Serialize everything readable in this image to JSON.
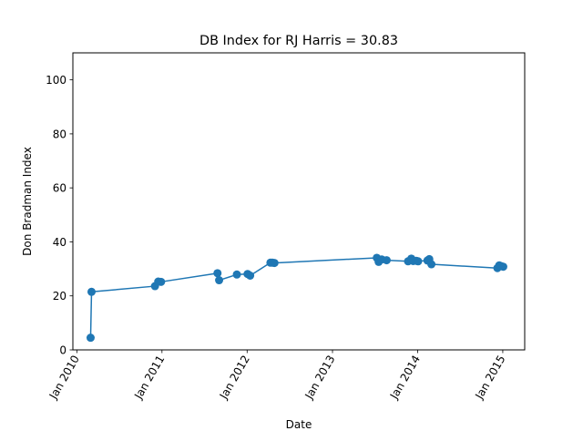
{
  "chart_data": {
    "type": "line",
    "title": "DB Index for RJ Harris = 30.83",
    "xlabel": "Date",
    "ylabel": "Don Bradman Index",
    "x_type": "date",
    "xlim": [
      "2009-12-15",
      "2015-04-05"
    ],
    "ylim": [
      0,
      110
    ],
    "x_ticks": [
      {
        "value": "2010-01-01",
        "label": "Jan 2010"
      },
      {
        "value": "2011-01-01",
        "label": "Jan 2011"
      },
      {
        "value": "2012-01-01",
        "label": "Jan 2012"
      },
      {
        "value": "2013-01-01",
        "label": "Jan 2013"
      },
      {
        "value": "2014-01-01",
        "label": "Jan 2014"
      },
      {
        "value": "2015-01-01",
        "label": "Jan 2015"
      }
    ],
    "y_ticks": [
      0,
      20,
      40,
      60,
      80,
      100
    ],
    "grid": false,
    "legend": null,
    "marker": "circle",
    "color": "#1f77b4",
    "series": [
      {
        "name": "",
        "points": [
          {
            "x": "2010-03-01",
            "y": 4.5
          },
          {
            "x": "2010-03-05",
            "y": 21.5
          },
          {
            "x": "2010-12-02",
            "y": 23.6
          },
          {
            "x": "2010-12-16",
            "y": 25.3
          },
          {
            "x": "2010-12-28",
            "y": 25.2
          },
          {
            "x": "2011-08-27",
            "y": 28.4
          },
          {
            "x": "2011-09-03",
            "y": 25.8
          },
          {
            "x": "2011-11-18",
            "y": 27.9
          },
          {
            "x": "2012-01-03",
            "y": 28.1
          },
          {
            "x": "2012-01-14",
            "y": 27.5
          },
          {
            "x": "2012-04-10",
            "y": 32.3
          },
          {
            "x": "2012-04-18",
            "y": 32.3
          },
          {
            "x": "2012-04-27",
            "y": 32.2
          },
          {
            "x": "2013-07-10",
            "y": 34.1
          },
          {
            "x": "2013-07-18",
            "y": 32.6
          },
          {
            "x": "2013-07-31",
            "y": 33.5
          },
          {
            "x": "2013-08-21",
            "y": 33.2
          },
          {
            "x": "2013-11-21",
            "y": 32.8
          },
          {
            "x": "2013-12-05",
            "y": 33.8
          },
          {
            "x": "2013-12-13",
            "y": 32.9
          },
          {
            "x": "2013-12-26",
            "y": 33.0
          },
          {
            "x": "2014-01-03",
            "y": 32.8
          },
          {
            "x": "2014-02-12",
            "y": 33.1
          },
          {
            "x": "2014-02-20",
            "y": 33.6
          },
          {
            "x": "2014-03-01",
            "y": 31.7
          },
          {
            "x": "2014-12-09",
            "y": 30.3
          },
          {
            "x": "2014-12-17",
            "y": 31.3
          },
          {
            "x": "2014-12-26",
            "y": 31.0
          },
          {
            "x": "2015-01-03",
            "y": 30.8
          }
        ]
      }
    ]
  }
}
